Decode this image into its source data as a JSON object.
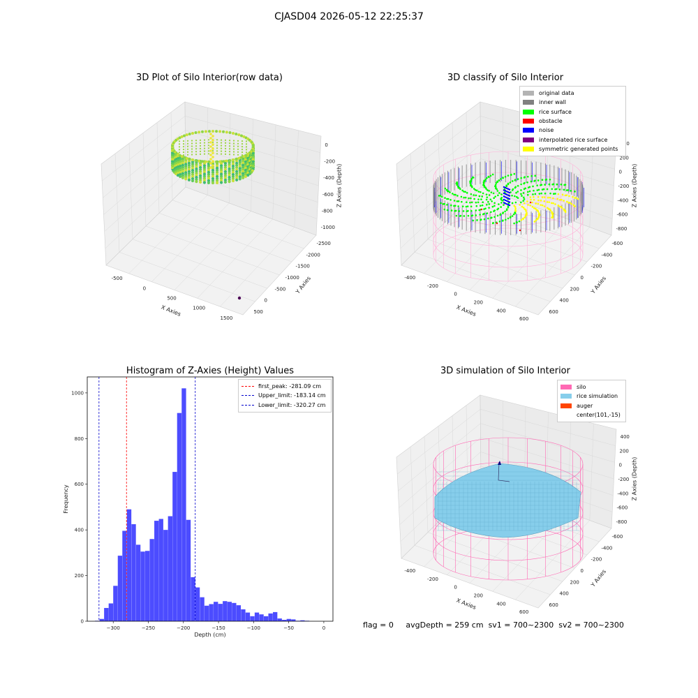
{
  "page": {
    "title": "CJASD04 2026-05-12 22:25:37",
    "footer": {
      "flag": "flag = 0",
      "avg_depth": "avgDepth = 259 cm",
      "sv1": "sv1 = 700~2300",
      "sv2": "sv2 = 700~2300"
    }
  },
  "chart_data": [
    {
      "type": "scatter",
      "title": "3D Plot of Silo Interior(row data)",
      "xlabel": "X Axies",
      "ylabel": "Y Axies",
      "zlabel": "Z Axies (Depth)",
      "x_ticks": [
        "-500",
        "0",
        "500",
        "1000",
        "1500"
      ],
      "y_ticks": [
        "500",
        "0",
        "-500",
        "-1000",
        "-1500",
        "-2000",
        "-2500"
      ],
      "z_ticks": [
        "0",
        "-200",
        "-400",
        "-600",
        "-800",
        "-1000"
      ],
      "colors": [
        "#c8e03a",
        "#8fd645",
        "#5fca5a",
        "#3fbc73"
      ]
    },
    {
      "type": "scatter",
      "title": "3D classify of Silo Interior",
      "xlabel": "X Axies",
      "ylabel": "Y Axies",
      "zlabel": "Z Axies (Depth)",
      "x_ticks": [
        "-400",
        "-200",
        "0",
        "200",
        "400",
        "600"
      ],
      "y_ticks": [
        "600",
        "400",
        "200",
        "0",
        "-200",
        "-400",
        "-600"
      ],
      "z_ticks": [
        "400",
        "200",
        "0",
        "-200",
        "-400",
        "-600",
        "-800"
      ],
      "legend": [
        {
          "label": "original data",
          "color": "#b3b3b3"
        },
        {
          "label": "inner wall",
          "color": "#808080"
        },
        {
          "label": "rice surface",
          "color": "#00ff00"
        },
        {
          "label": "obstacle",
          "color": "#ff0000"
        },
        {
          "label": "noise",
          "color": "#0000ff"
        },
        {
          "label": "interpolated rice surface",
          "color": "#800080"
        },
        {
          "label": "symmetric generated points",
          "color": "#ffff00"
        }
      ]
    },
    {
      "type": "bar",
      "title": "Histogram of Z-Axies (Height) Values",
      "xlabel": "Depth (cm)",
      "ylabel": "Frequency",
      "xlim": [
        -337,
        13
      ],
      "ylim": [
        0,
        1070
      ],
      "x_ticks": [
        -300,
        -250,
        -200,
        -150,
        -100,
        -50,
        0
      ],
      "y_ticks": [
        0,
        200,
        400,
        600,
        800,
        1000
      ],
      "bin_start": -326,
      "bin_width": 6.5,
      "values": [
        2,
        10,
        58,
        78,
        155,
        287,
        396,
        490,
        425,
        335,
        305,
        308,
        360,
        440,
        448,
        400,
        460,
        654,
        912,
        1020,
        444,
        193,
        148,
        105,
        68,
        75,
        85,
        76,
        88,
        85,
        80,
        70,
        52,
        38,
        22,
        38,
        30,
        22,
        34,
        40,
        12,
        6,
        10,
        8,
        2,
        4,
        2
      ],
      "bar_color": "#4c4cff",
      "vlines": [
        {
          "label": "first_peak: -281.09 cm",
          "x": -281.09,
          "color": "#ff0000"
        },
        {
          "label": "Upper_limit: -183.14 cm",
          "x": -183.14,
          "color": "#0000cc"
        },
        {
          "label": "Lower_limit: -320.27 cm",
          "x": -320.27,
          "color": "#0000cc"
        }
      ]
    },
    {
      "type": "scatter",
      "title": "3D simulation of Silo Interior",
      "xlabel": "X Axies",
      "ylabel": "Y Axies",
      "zlabel": "Z Axies (Depth)",
      "x_ticks": [
        "-400",
        "-200",
        "0",
        "200",
        "400",
        "600"
      ],
      "y_ticks": [
        "600",
        "400",
        "200",
        "0",
        "-200",
        "-400",
        "-600"
      ],
      "z_ticks": [
        "400",
        "200",
        "0",
        "-200",
        "-400",
        "-600",
        "-800"
      ],
      "legend": [
        {
          "label": "silo",
          "color": "#ff69b4"
        },
        {
          "label": "rice simulation",
          "color": "#87ceeb"
        },
        {
          "label": "auger",
          "color": "#ff4500"
        },
        {
          "label": "center(101,-15)",
          "color": ""
        }
      ]
    }
  ]
}
